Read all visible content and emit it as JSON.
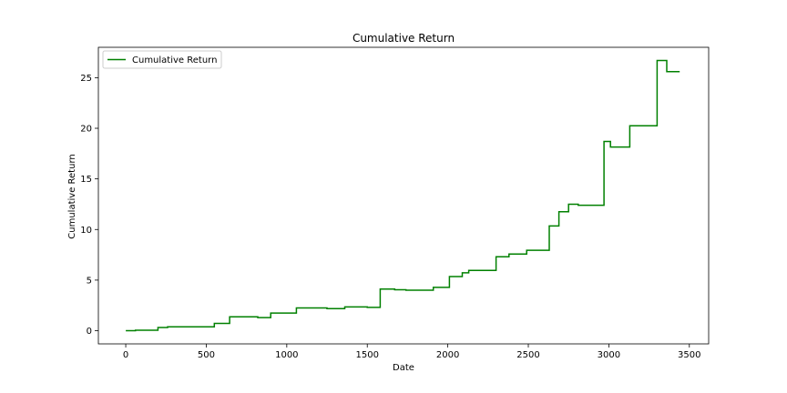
{
  "chart_data": {
    "type": "line",
    "title": "Cumulative Return",
    "xlabel": "Date",
    "ylabel": "Cumulative Return",
    "xlim": [
      -170,
      3620
    ],
    "ylim": [
      -1.3,
      28.0
    ],
    "xticks": [
      0,
      500,
      1000,
      1500,
      2000,
      2500,
      3000,
      3500
    ],
    "yticks": [
      0,
      5,
      10,
      15,
      20,
      25
    ],
    "grid": false,
    "legend": {
      "position": "top-left",
      "entries": [
        "Cumulative Return"
      ]
    },
    "colors": {
      "series": "#008000",
      "axes": "#000000",
      "background": "#ffffff"
    },
    "series": [
      {
        "name": "Cumulative Return",
        "step": true,
        "x": [
          0,
          60,
          200,
          260,
          550,
          645,
          820,
          900,
          1060,
          1250,
          1360,
          1500,
          1580,
          1670,
          1740,
          1910,
          2010,
          2090,
          2130,
          2300,
          2380,
          2490,
          2630,
          2690,
          2750,
          2810,
          2970,
          3010,
          3130,
          3300,
          3360,
          3440
        ],
        "y": [
          0.0,
          0.05,
          0.32,
          0.38,
          0.72,
          1.37,
          1.3,
          1.75,
          2.25,
          2.18,
          2.35,
          2.3,
          4.12,
          4.05,
          4.0,
          4.28,
          5.35,
          5.72,
          5.95,
          7.3,
          7.58,
          7.95,
          10.35,
          11.75,
          12.5,
          12.4,
          18.7,
          18.15,
          20.25,
          26.7,
          25.6,
          25.6
        ]
      }
    ]
  }
}
